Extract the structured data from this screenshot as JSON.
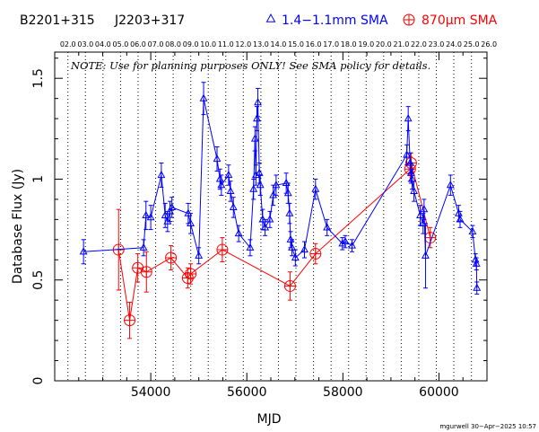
{
  "header": {
    "source_name": "B2201+315",
    "alt_name": "J2203+317",
    "legend_blue_label": "1.4−1.1mm SMA",
    "legend_red_label": "870μm SMA",
    "legend_blue_symbol": "triangle",
    "legend_red_symbol": "circle-plus"
  },
  "note": "NOTE: Use for planning purposes ONLY!  See SMA policy for details.",
  "credit": "mgurwell 30−Apr−2025 10:57",
  "colors": {
    "blue": "#0000ff",
    "red": "#ff0000",
    "axis": "#000000"
  },
  "chart_data": {
    "type": "scatter",
    "xlabel": "MJD",
    "ylabel": "Database Flux (Jy)",
    "xlim": [
      52000,
      61000
    ],
    "ylim": [
      0,
      1.63
    ],
    "x_ticks": [
      54000,
      56000,
      58000,
      60000
    ],
    "x_tick_labels": [
      "54000",
      "56000",
      "58000",
      "60000"
    ],
    "y_ticks": [
      0,
      0.5,
      1,
      1.5
    ],
    "y_tick_labels": [
      "0",
      "0.5",
      "1",
      "1.5"
    ],
    "year_lines": [
      {
        "label": "02.0",
        "mjd": 52275
      },
      {
        "label": "03.0",
        "mjd": 52640
      },
      {
        "label": "04.0",
        "mjd": 53005
      },
      {
        "label": "05.0",
        "mjd": 53371
      },
      {
        "label": "06.0",
        "mjd": 53736
      },
      {
        "label": "07.0",
        "mjd": 54101
      },
      {
        "label": "08.0",
        "mjd": 54466
      },
      {
        "label": "09.0",
        "mjd": 54832
      },
      {
        "label": "10.0",
        "mjd": 55197
      },
      {
        "label": "11.0",
        "mjd": 55562
      },
      {
        "label": "12.0",
        "mjd": 55927
      },
      {
        "label": "13.0",
        "mjd": 56293
      },
      {
        "label": "14.0",
        "mjd": 56658
      },
      {
        "label": "15.0",
        "mjd": 57023
      },
      {
        "label": "16.0",
        "mjd": 57388
      },
      {
        "label": "17.0",
        "mjd": 57754
      },
      {
        "label": "18.0",
        "mjd": 58119
      },
      {
        "label": "19.0",
        "mjd": 58484
      },
      {
        "label": "20.0",
        "mjd": 58849
      },
      {
        "label": "21.0",
        "mjd": 59215
      },
      {
        "label": "22.0",
        "mjd": 59580
      },
      {
        "label": "23.0",
        "mjd": 59945
      },
      {
        "label": "24.0",
        "mjd": 60310
      },
      {
        "label": "25.0",
        "mjd": 60676
      },
      {
        "label": "26.0",
        "mjd": 61041
      }
    ],
    "series": [
      {
        "name": "1.4−1.1mm SMA",
        "color": "#0000ff",
        "marker": "triangle",
        "points": [
          {
            "x": 52600,
            "y": 0.64,
            "err": 0.06
          },
          {
            "x": 53850,
            "y": 0.66,
            "err": 0.04
          },
          {
            "x": 53900,
            "y": 0.82,
            "err": 0.07
          },
          {
            "x": 54000,
            "y": 0.81,
            "err": 0.06
          },
          {
            "x": 54220,
            "y": 1.02,
            "err": 0.06
          },
          {
            "x": 54300,
            "y": 0.82,
            "err": 0.06
          },
          {
            "x": 54350,
            "y": 0.79,
            "err": 0.05
          },
          {
            "x": 54400,
            "y": 0.84,
            "err": 0.05
          },
          {
            "x": 54440,
            "y": 0.86,
            "err": 0.05
          },
          {
            "x": 54780,
            "y": 0.83,
            "err": 0.05
          },
          {
            "x": 54830,
            "y": 0.78,
            "err": 0.05
          },
          {
            "x": 55000,
            "y": 0.62,
            "err": 0.04
          },
          {
            "x": 55100,
            "y": 1.4,
            "err": 0.08
          },
          {
            "x": 55380,
            "y": 1.1,
            "err": 0.06
          },
          {
            "x": 55440,
            "y": 1.0,
            "err": 0.05
          },
          {
            "x": 55470,
            "y": 0.97,
            "err": 0.05
          },
          {
            "x": 55620,
            "y": 1.02,
            "err": 0.05
          },
          {
            "x": 55660,
            "y": 0.94,
            "err": 0.05
          },
          {
            "x": 55720,
            "y": 0.86,
            "err": 0.05
          },
          {
            "x": 55830,
            "y": 0.73,
            "err": 0.04
          },
          {
            "x": 56070,
            "y": 0.66,
            "err": 0.04
          },
          {
            "x": 56140,
            "y": 0.95,
            "err": 0.05
          },
          {
            "x": 56170,
            "y": 1.2,
            "err": 0.06
          },
          {
            "x": 56190,
            "y": 1.02,
            "err": 0.05
          },
          {
            "x": 56210,
            "y": 1.3,
            "err": 0.06
          },
          {
            "x": 56230,
            "y": 1.38,
            "err": 0.07
          },
          {
            "x": 56260,
            "y": 1.03,
            "err": 0.05
          },
          {
            "x": 56280,
            "y": 0.97,
            "err": 0.05
          },
          {
            "x": 56330,
            "y": 0.8,
            "err": 0.05
          },
          {
            "x": 56380,
            "y": 0.76,
            "err": 0.04
          },
          {
            "x": 56480,
            "y": 0.8,
            "err": 0.04
          },
          {
            "x": 56550,
            "y": 0.92,
            "err": 0.05
          },
          {
            "x": 56610,
            "y": 0.97,
            "err": 0.05
          },
          {
            "x": 56820,
            "y": 0.98,
            "err": 0.05
          },
          {
            "x": 56860,
            "y": 0.93,
            "err": 0.05
          },
          {
            "x": 56890,
            "y": 0.83,
            "err": 0.05
          },
          {
            "x": 56910,
            "y": 0.7,
            "err": 0.04
          },
          {
            "x": 56940,
            "y": 0.66,
            "err": 0.04
          },
          {
            "x": 57010,
            "y": 0.61,
            "err": 0.04
          },
          {
            "x": 57200,
            "y": 0.65,
            "err": 0.04
          },
          {
            "x": 57430,
            "y": 0.95,
            "err": 0.05
          },
          {
            "x": 57670,
            "y": 0.76,
            "err": 0.04
          },
          {
            "x": 57990,
            "y": 0.68,
            "err": 0.03
          },
          {
            "x": 58050,
            "y": 0.69,
            "err": 0.03
          },
          {
            "x": 58190,
            "y": 0.67,
            "err": 0.03
          },
          {
            "x": 59330,
            "y": 1.12,
            "err": 0.05
          },
          {
            "x": 59360,
            "y": 1.3,
            "err": 0.06
          },
          {
            "x": 59400,
            "y": 1.08,
            "err": 0.05
          },
          {
            "x": 59420,
            "y": 1.03,
            "err": 0.05
          },
          {
            "x": 59440,
            "y": 1.0,
            "err": 0.05
          },
          {
            "x": 59480,
            "y": 0.94,
            "err": 0.05
          },
          {
            "x": 59610,
            "y": 0.82,
            "err": 0.05
          },
          {
            "x": 59670,
            "y": 0.78,
            "err": 0.05
          },
          {
            "x": 59690,
            "y": 0.85,
            "err": 0.05
          },
          {
            "x": 59720,
            "y": 0.62,
            "err": 0.16
          },
          {
            "x": 60240,
            "y": 0.97,
            "err": 0.05
          },
          {
            "x": 60410,
            "y": 0.83,
            "err": 0.04
          },
          {
            "x": 60440,
            "y": 0.8,
            "err": 0.04
          },
          {
            "x": 60700,
            "y": 0.74,
            "err": 0.03
          },
          {
            "x": 60760,
            "y": 0.6,
            "err": 0.03
          },
          {
            "x": 60780,
            "y": 0.58,
            "err": 0.03
          },
          {
            "x": 60790,
            "y": 0.46,
            "err": 0.03
          }
        ]
      },
      {
        "name": "870μm SMA",
        "color": "#ff0000",
        "marker": "circle-plus",
        "points": [
          {
            "x": 53330,
            "y": 0.65,
            "err": 0.2
          },
          {
            "x": 53560,
            "y": 0.3,
            "err": 0.09
          },
          {
            "x": 53730,
            "y": 0.56,
            "err": 0.07
          },
          {
            "x": 53910,
            "y": 0.54,
            "err": 0.1
          },
          {
            "x": 54420,
            "y": 0.61,
            "err": 0.06
          },
          {
            "x": 54770,
            "y": 0.51,
            "err": 0.05
          },
          {
            "x": 54830,
            "y": 0.53,
            "err": 0.05
          },
          {
            "x": 55490,
            "y": 0.65,
            "err": 0.06
          },
          {
            "x": 56900,
            "y": 0.47,
            "err": 0.07
          },
          {
            "x": 57430,
            "y": 0.63,
            "err": 0.05
          },
          {
            "x": 59400,
            "y": 1.05,
            "err": 0.06
          },
          {
            "x": 59420,
            "y": 1.08,
            "err": 0.05
          },
          {
            "x": 59820,
            "y": 0.71,
            "err": 0.05
          }
        ]
      }
    ]
  }
}
